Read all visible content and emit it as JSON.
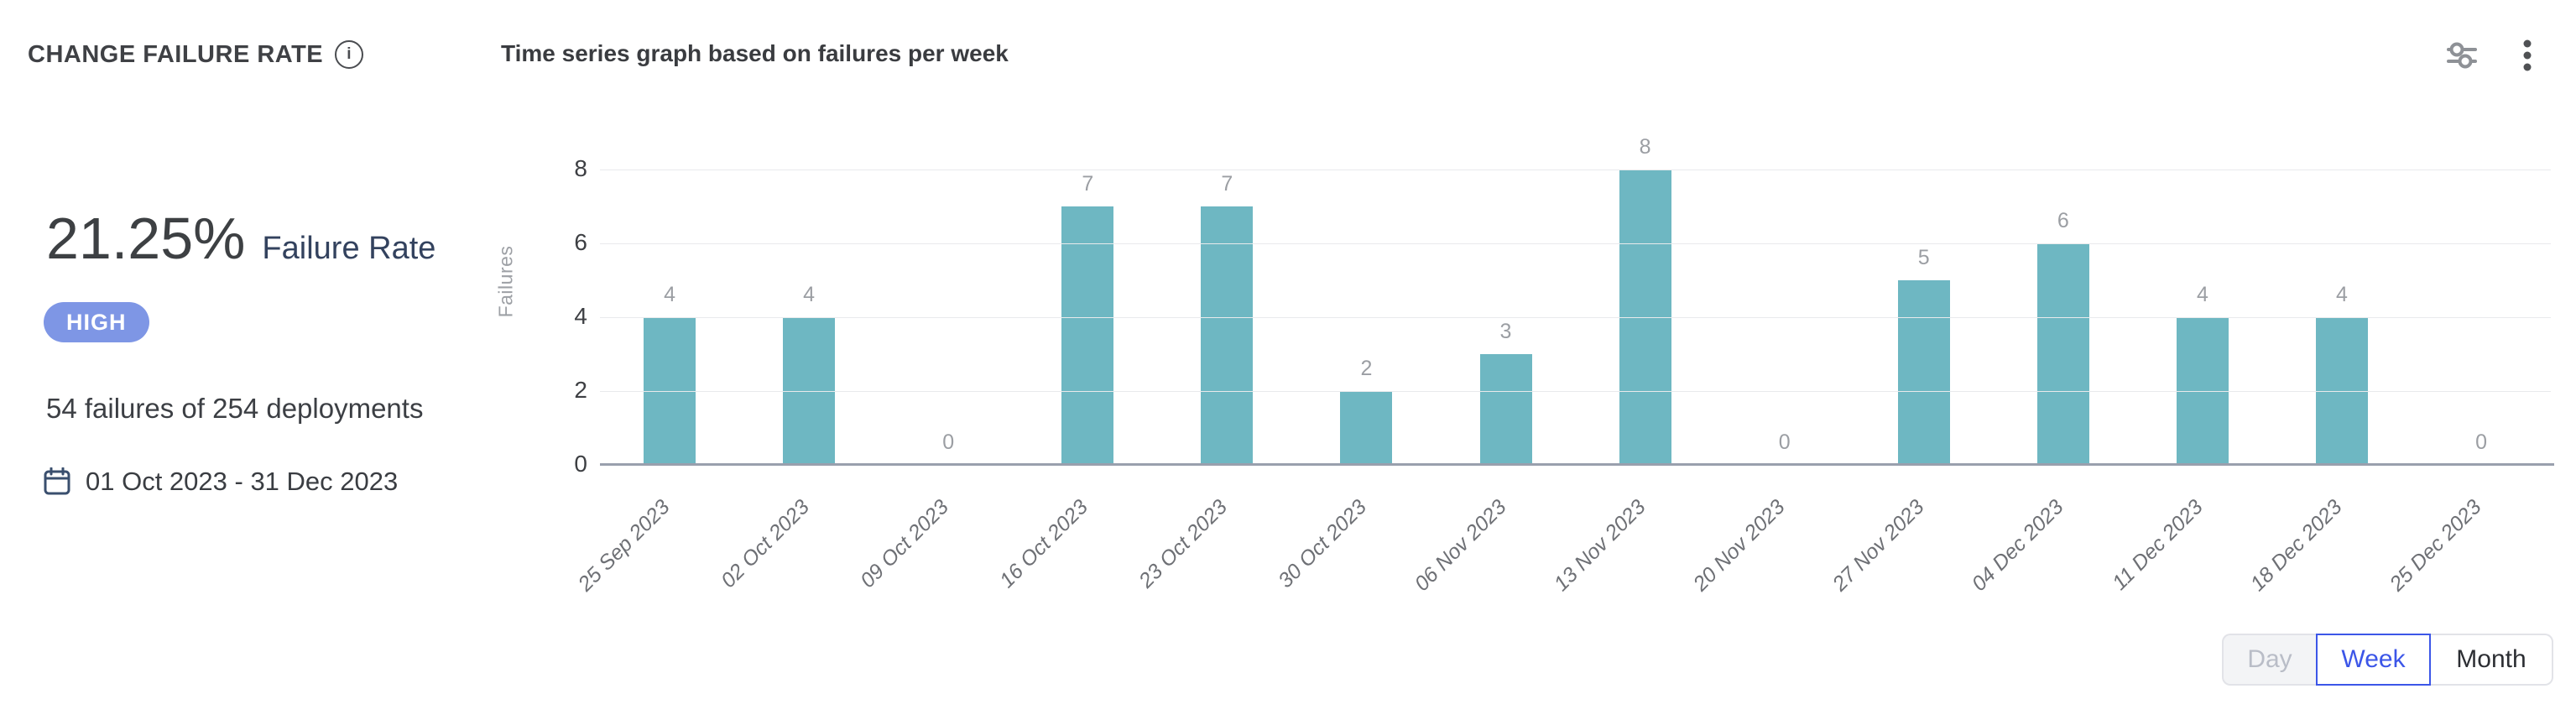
{
  "header": {
    "title": "CHANGE FAILURE RATE",
    "info_icon": "info-circle-icon",
    "chart_title": "Time series graph based on failures per week",
    "settings_icon": "sliders-icon",
    "menu_icon": "kebab-menu-icon"
  },
  "summary": {
    "metric_value": "21.25%",
    "metric_label": "Failure Rate",
    "severity": "HIGH",
    "severity_color": "#7e96e5",
    "detail": "54 failures of 254 deployments",
    "calendar_icon": "calendar-icon",
    "date_range": "01 Oct 2023 - 31 Dec 2023"
  },
  "chart_data": {
    "type": "bar",
    "title": "Time series graph based on failures per week",
    "xlabel": "",
    "ylabel": "Failures",
    "categories": [
      "25 Sep 2023",
      "02 Oct 2023",
      "09 Oct 2023",
      "16 Oct 2023",
      "23 Oct 2023",
      "30 Oct 2023",
      "06 Nov 2023",
      "13 Nov 2023",
      "20 Nov 2023",
      "27 Nov 2023",
      "04 Dec 2023",
      "11 Dec 2023",
      "18 Dec 2023",
      "25 Dec 2023"
    ],
    "values": [
      4,
      4,
      0,
      7,
      7,
      2,
      3,
      8,
      0,
      5,
      6,
      4,
      4,
      0
    ],
    "yticks": [
      0,
      2,
      4,
      6,
      8
    ],
    "ylim": [
      0,
      8
    ],
    "bar_color": "#6eb7c2",
    "grid": true,
    "legend": false,
    "x_label_rotation": -45
  },
  "controls": {
    "granularity": [
      {
        "label": "Day",
        "state": "disabled"
      },
      {
        "label": "Week",
        "state": "selected"
      },
      {
        "label": "Month",
        "state": "default"
      }
    ]
  },
  "colors": {
    "accent_blue": "#3c56e8",
    "bar_teal": "#6eb7c2",
    "badge_periwinkle": "#7e96e5",
    "baseline_gray": "#99a0ad"
  }
}
